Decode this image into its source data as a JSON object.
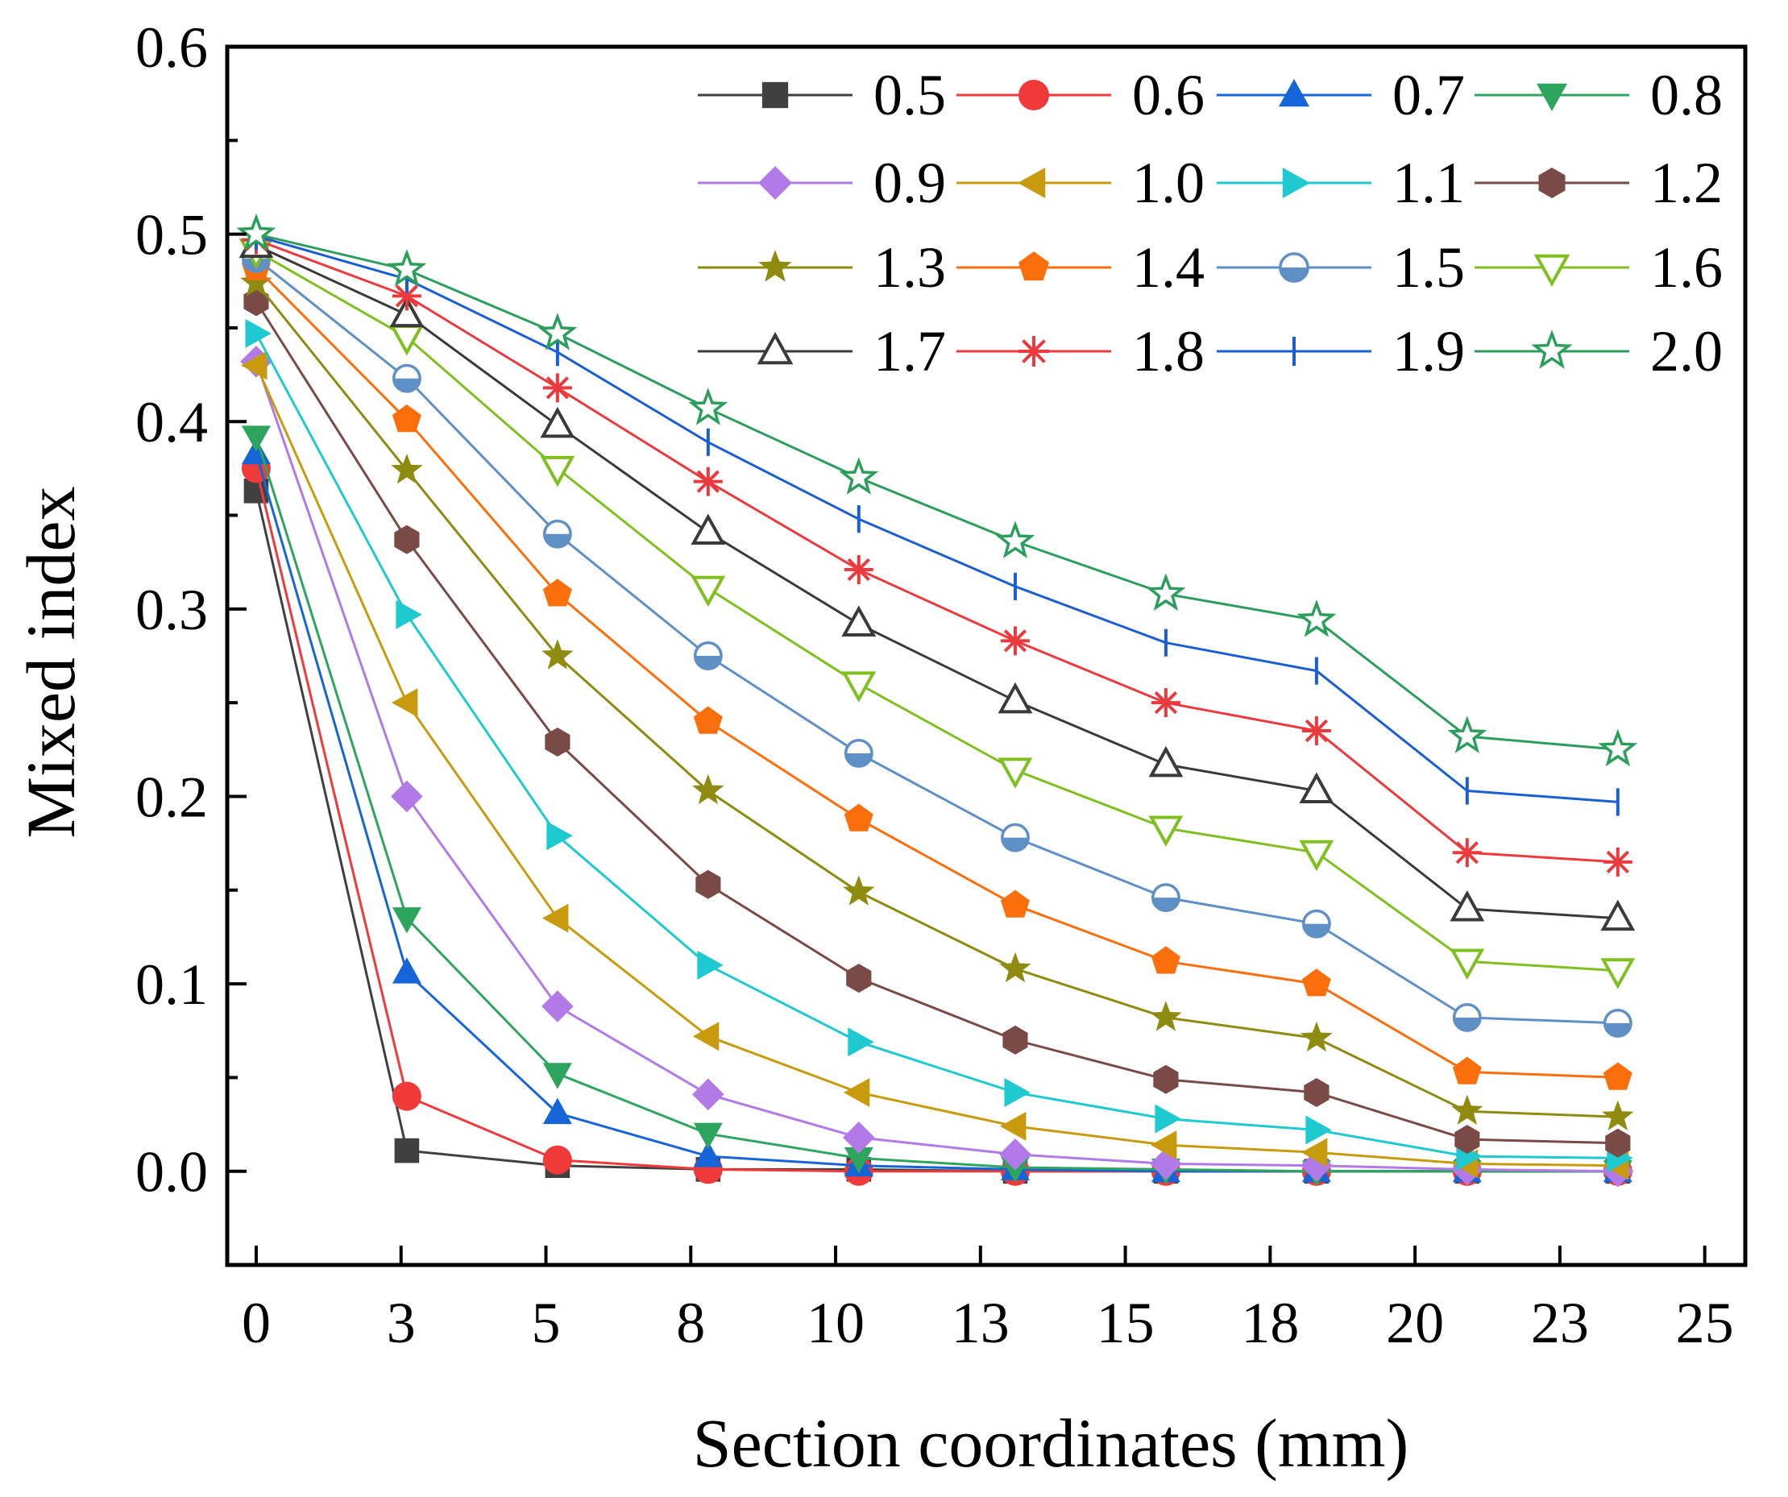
{
  "chart_data": {
    "type": "line",
    "xlabel": "Section coordinates (mm)",
    "ylabel": "Mixed index",
    "xlim": [
      -0.5,
      25.7
    ],
    "ylim": [
      -0.05,
      0.6
    ],
    "x_ticks": [
      0,
      2.5,
      5,
      7.5,
      10,
      12.5,
      15,
      17.5,
      20,
      22.5,
      25
    ],
    "x_tick_labels": [
      "0",
      "3",
      "5",
      "8",
      "10",
      "13",
      "15",
      "18",
      "20",
      "23",
      "25"
    ],
    "y_ticks": [
      0.0,
      0.1,
      0.2,
      0.3,
      0.4,
      0.5,
      0.6
    ],
    "y_tick_labels": [
      "0.0",
      "0.1",
      "0.2",
      "0.3",
      "0.4",
      "0.5",
      "0.6"
    ],
    "x": [
      0,
      2.6,
      5.2,
      7.8,
      10.4,
      13.1,
      15.7,
      18.3,
      20.9,
      23.5
    ],
    "legend_position": "top-right",
    "series": [
      {
        "name": "0.5",
        "color": "#404040",
        "marker": "square",
        "fill": true,
        "values": [
          0.363,
          0.011,
          0.003,
          0.001,
          0.001,
          0.0,
          0.0,
          0.0,
          0.0,
          0.0
        ]
      },
      {
        "name": "0.6",
        "color": "#f03a3a",
        "marker": "circle",
        "fill": true,
        "values": [
          0.375,
          0.04,
          0.006,
          0.001,
          0.0,
          0.0,
          0.0,
          0.0,
          0.0,
          0.0
        ]
      },
      {
        "name": "0.7",
        "color": "#1565d8",
        "marker": "triangle-up",
        "fill": true,
        "values": [
          0.383,
          0.106,
          0.031,
          0.008,
          0.003,
          0.001,
          0.0,
          0.0,
          0.0,
          0.0
        ]
      },
      {
        "name": "0.8",
        "color": "#2ea55f",
        "marker": "triangle-down",
        "fill": true,
        "values": [
          0.392,
          0.135,
          0.052,
          0.02,
          0.007,
          0.002,
          0.001,
          0.0,
          0.0,
          0.0
        ]
      },
      {
        "name": "0.9",
        "color": "#b27ae6",
        "marker": "diamond",
        "fill": true,
        "values": [
          0.432,
          0.2,
          0.088,
          0.041,
          0.018,
          0.009,
          0.004,
          0.003,
          0.001,
          0.0
        ]
      },
      {
        "name": "1.0",
        "color": "#c89b0f",
        "marker": "triangle-left",
        "fill": true,
        "values": [
          0.43,
          0.25,
          0.135,
          0.072,
          0.042,
          0.024,
          0.014,
          0.01,
          0.004,
          0.003
        ]
      },
      {
        "name": "1.1",
        "color": "#1ec9d0",
        "marker": "triangle-right",
        "fill": true,
        "values": [
          0.447,
          0.297,
          0.179,
          0.11,
          0.069,
          0.042,
          0.028,
          0.022,
          0.008,
          0.007
        ]
      },
      {
        "name": "1.2",
        "color": "#7a4a46",
        "marker": "hexagon",
        "fill": true,
        "values": [
          0.464,
          0.337,
          0.229,
          0.153,
          0.103,
          0.07,
          0.049,
          0.042,
          0.017,
          0.015
        ]
      },
      {
        "name": "1.3",
        "color": "#8f8a10",
        "marker": "star",
        "fill": true,
        "values": [
          0.474,
          0.374,
          0.275,
          0.203,
          0.149,
          0.108,
          0.082,
          0.071,
          0.032,
          0.029
        ]
      },
      {
        "name": "1.4",
        "color": "#fa6e0c",
        "marker": "pentagon",
        "fill": true,
        "values": [
          0.482,
          0.401,
          0.308,
          0.24,
          0.188,
          0.142,
          0.112,
          0.1,
          0.053,
          0.05
        ]
      },
      {
        "name": "1.5",
        "color": "#5e8fc5",
        "marker": "half-circle",
        "fill": false,
        "values": [
          0.487,
          0.423,
          0.34,
          0.275,
          0.223,
          0.178,
          0.146,
          0.132,
          0.082,
          0.079
        ]
      },
      {
        "name": "1.6",
        "color": "#7fbf1e",
        "marker": "triangle-down",
        "fill": false,
        "values": [
          0.491,
          0.445,
          0.375,
          0.311,
          0.26,
          0.214,
          0.183,
          0.17,
          0.112,
          0.107
        ]
      },
      {
        "name": "1.7",
        "color": "#3a3a3a",
        "marker": "triangle-up",
        "fill": false,
        "values": [
          0.494,
          0.457,
          0.398,
          0.341,
          0.292,
          0.251,
          0.217,
          0.203,
          0.14,
          0.135
        ]
      },
      {
        "name": "1.8",
        "color": "#eb3a3e",
        "marker": "asterisk",
        "fill": false,
        "values": [
          0.497,
          0.467,
          0.418,
          0.368,
          0.321,
          0.283,
          0.25,
          0.235,
          0.17,
          0.165
        ]
      },
      {
        "name": "1.9",
        "color": "#1a5fd1",
        "marker": "tick",
        "fill": false,
        "values": [
          0.499,
          0.476,
          0.437,
          0.389,
          0.348,
          0.312,
          0.282,
          0.267,
          0.203,
          0.197
        ]
      },
      {
        "name": "2.0",
        "color": "#2c9e5b",
        "marker": "star",
        "fill": false,
        "values": [
          0.5,
          0.481,
          0.447,
          0.407,
          0.37,
          0.336,
          0.308,
          0.294,
          0.232,
          0.225
        ]
      }
    ]
  }
}
